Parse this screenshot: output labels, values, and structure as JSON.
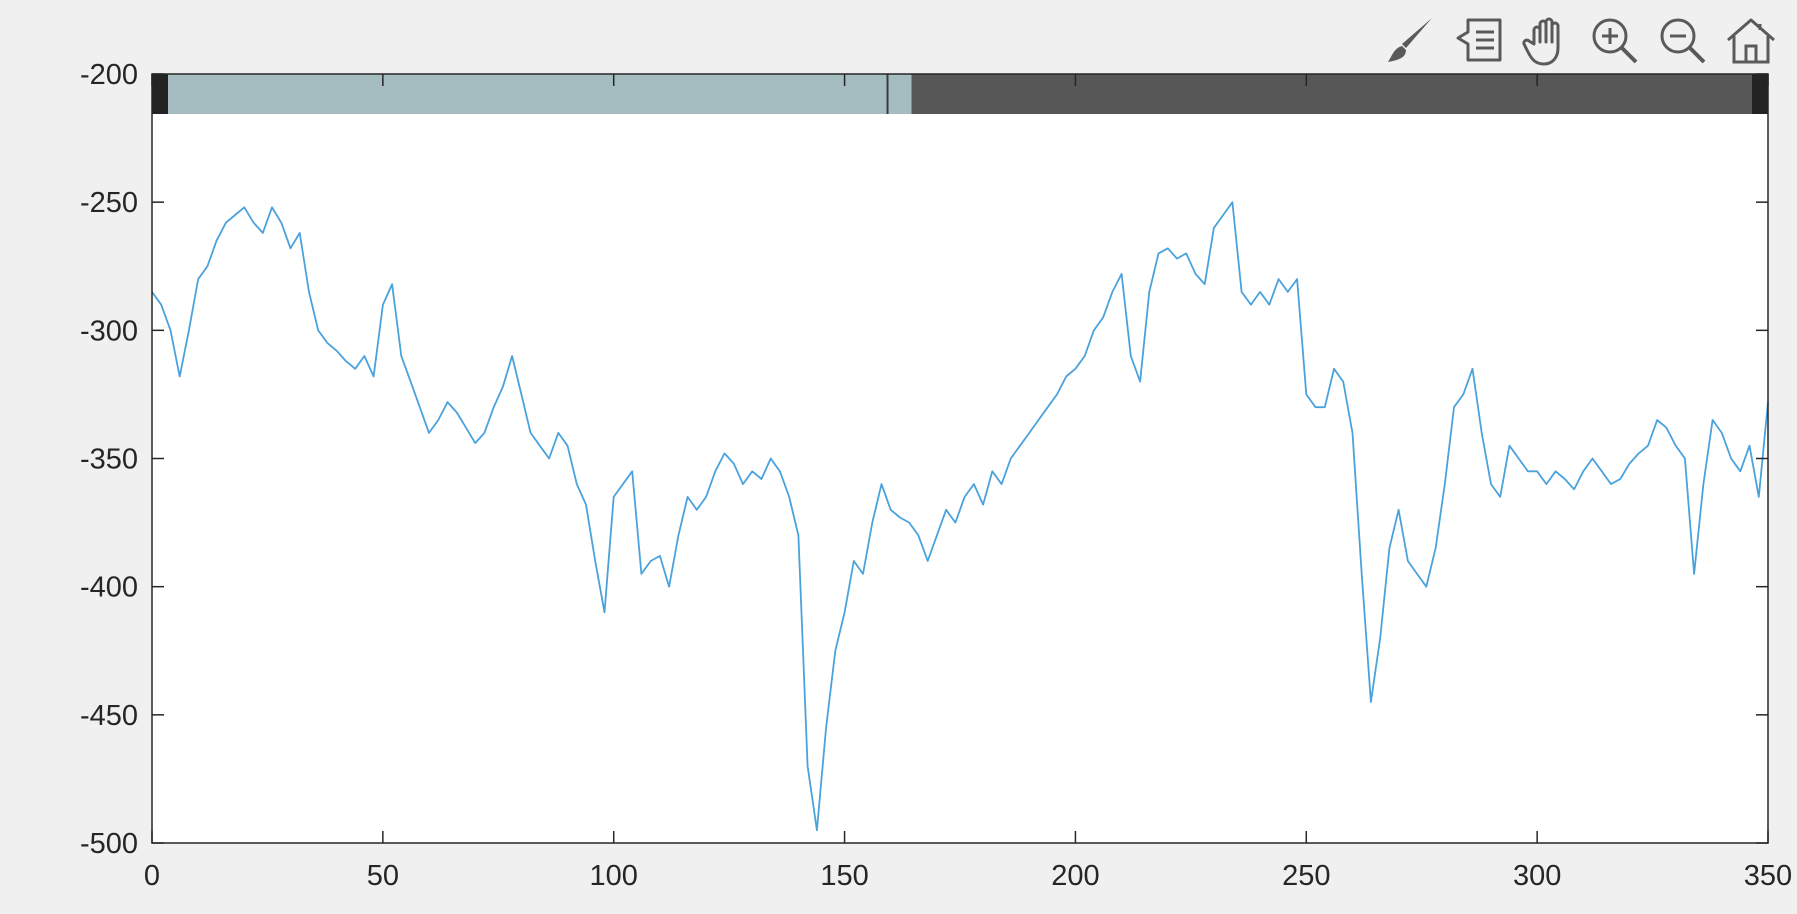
{
  "toolbar": {
    "tools": [
      {
        "name": "brush-icon"
      },
      {
        "name": "datatip-icon"
      },
      {
        "name": "pan-hand-icon"
      },
      {
        "name": "zoom-in-icon"
      },
      {
        "name": "zoom-out-icon"
      },
      {
        "name": "home-icon"
      }
    ],
    "icon_color": "#5a5a5a"
  },
  "chart_data": {
    "type": "line",
    "title": "",
    "xlabel": "",
    "ylabel": "",
    "xlim": [
      0,
      350
    ],
    "ylim": [
      -500,
      -200
    ],
    "xticks": [
      0,
      50,
      100,
      150,
      200,
      250,
      300,
      350
    ],
    "yticks": [
      -200,
      -250,
      -300,
      -350,
      -400,
      -450,
      -500
    ],
    "grid": false,
    "line_color": "#4aa2dd",
    "series": [
      {
        "x": [
          0,
          2,
          4,
          6,
          8,
          10,
          12,
          14,
          16,
          18,
          20,
          22,
          24,
          26,
          28,
          30,
          32,
          34,
          36,
          38,
          40,
          42,
          44,
          46,
          48,
          50,
          52,
          54,
          56,
          58,
          60,
          62,
          64,
          66,
          68,
          70,
          72,
          74,
          76,
          78,
          80,
          82,
          84,
          86,
          88,
          90,
          92,
          94,
          96,
          98,
          100,
          102,
          104,
          106,
          108,
          110,
          112,
          114,
          116,
          118,
          120,
          122,
          124,
          126,
          128,
          130,
          132,
          134,
          136,
          138,
          140,
          142,
          144,
          146,
          148,
          150,
          152,
          154,
          156,
          158,
          160,
          162,
          164,
          166,
          168,
          170,
          172,
          174,
          176,
          178,
          180,
          182,
          184,
          186,
          188,
          190,
          192,
          194,
          196,
          198,
          200,
          202,
          204,
          206,
          208,
          210,
          212,
          214,
          216,
          218,
          220,
          222,
          224,
          226,
          228,
          230,
          232,
          234,
          236,
          238,
          240,
          242,
          244,
          246,
          248,
          250,
          252,
          254,
          256,
          258,
          260,
          262,
          264,
          266,
          268,
          270,
          272,
          274,
          276,
          278,
          280,
          282,
          284,
          286,
          288,
          290,
          292,
          294,
          296,
          298,
          300,
          302,
          304,
          306,
          308,
          310,
          312,
          314,
          316,
          318,
          320,
          322,
          324,
          326,
          328,
          330,
          332,
          334,
          336,
          338,
          340,
          342,
          344,
          346,
          348,
          350
        ],
        "values": [
          -285,
          -290,
          -300,
          -318,
          -300,
          -280,
          -275,
          -265,
          -258,
          -255,
          -252,
          -258,
          -262,
          -252,
          -258,
          -268,
          -262,
          -285,
          -300,
          -305,
          -308,
          -312,
          -315,
          -310,
          -318,
          -290,
          -282,
          -310,
          -320,
          -330,
          -340,
          -335,
          -328,
          -332,
          -338,
          -344,
          -340,
          -330,
          -322,
          -310,
          -325,
          -340,
          -345,
          -350,
          -340,
          -345,
          -360,
          -368,
          -390,
          -410,
          -365,
          -360,
          -355,
          -395,
          -390,
          -388,
          -400,
          -380,
          -365,
          -370,
          -365,
          -355,
          -348,
          -352,
          -360,
          -355,
          -358,
          -350,
          -355,
          -365,
          -380,
          -470,
          -495,
          -455,
          -425,
          -410,
          -390,
          -395,
          -375,
          -360,
          -370,
          -373,
          -375,
          -380,
          -390,
          -380,
          -370,
          -375,
          -365,
          -360,
          -368,
          -355,
          -360,
          -350,
          -345,
          -340,
          -335,
          -330,
          -325,
          -318,
          -315,
          -310,
          -300,
          -295,
          -285,
          -278,
          -310,
          -320,
          -285,
          -270,
          -268,
          -272,
          -270,
          -278,
          -282,
          -260,
          -255,
          -250,
          -285,
          -290,
          -285,
          -290,
          -280,
          -285,
          -280,
          -325,
          -330,
          -330,
          -315,
          -320,
          -340,
          -395,
          -445,
          -420,
          -385,
          -370,
          -390,
          -395,
          -400,
          -385,
          -360,
          -330,
          -325,
          -315,
          -340,
          -360,
          -365,
          -345,
          -350,
          -355,
          -355,
          -360,
          -355,
          -358,
          -362,
          -355,
          -350,
          -355,
          -360,
          -358,
          -352,
          -348,
          -345,
          -335,
          -338,
          -345,
          -350,
          -395,
          -360,
          -335,
          -340,
          -350,
          -355,
          -345,
          -365,
          -328
        ]
      }
    ]
  },
  "scrollbar": {
    "visible_fraction": 0.47,
    "thumb_color": "#a5bcc0",
    "track_color": "#575757",
    "end_cap_color": "#232323"
  }
}
